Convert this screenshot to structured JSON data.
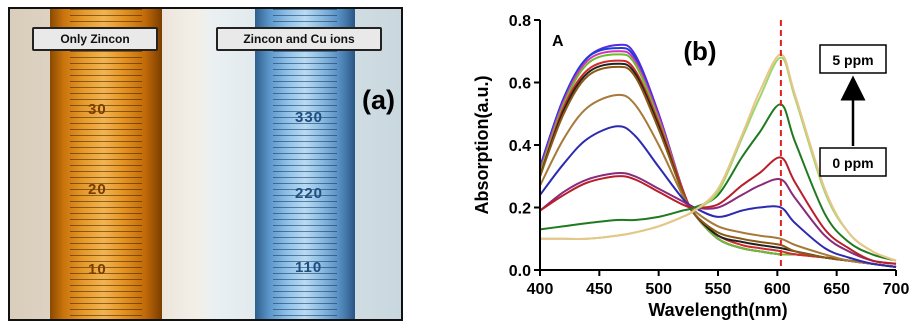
{
  "photo": {
    "left_label": "Only Zincon",
    "right_label": "Zincon and Cu ions",
    "panel_label": "(a)",
    "left_tube_marks": [
      "30",
      "20",
      "10"
    ],
    "right_tube_marks": [
      "330",
      "220",
      "110"
    ]
  },
  "chart_data": {
    "type": "line",
    "panel_label": "(b)",
    "inset_label": "A",
    "xlabel": "Wavelength(nm)",
    "ylabel": "Absorption(a.u.)",
    "xlim": [
      400,
      700
    ],
    "ylim": [
      0,
      0.8
    ],
    "xticks": [
      "400",
      "450",
      "500",
      "550",
      "600",
      "650",
      "700"
    ],
    "yticks": [
      "0.0",
      "0.2",
      "0.4",
      "0.6",
      "0.8"
    ],
    "grid": false,
    "reference_line": {
      "x": 603,
      "style": "dashed",
      "color": "#e02020"
    },
    "arrow_annotation": {
      "top_label": "5 ppm",
      "bottom_label": "0 ppm"
    },
    "x": [
      400,
      420,
      440,
      465,
      480,
      500,
      520,
      530,
      550,
      570,
      585,
      603,
      615,
      640,
      660,
      680,
      700
    ],
    "series": [
      {
        "color": "#5a2bd6",
        "values": [
          0.33,
          0.55,
          0.68,
          0.72,
          0.69,
          0.5,
          0.26,
          0.18,
          0.1,
          0.07,
          0.06,
          0.05,
          0.05,
          0.04,
          0.03,
          0.02,
          0.01
        ]
      },
      {
        "color": "#1a3fd8",
        "values": [
          0.33,
          0.55,
          0.68,
          0.71,
          0.68,
          0.49,
          0.26,
          0.18,
          0.1,
          0.07,
          0.06,
          0.05,
          0.05,
          0.04,
          0.03,
          0.02,
          0.01
        ]
      },
      {
        "color": "#d630c0",
        "values": [
          0.32,
          0.54,
          0.67,
          0.7,
          0.67,
          0.49,
          0.26,
          0.18,
          0.1,
          0.07,
          0.06,
          0.05,
          0.05,
          0.04,
          0.03,
          0.02,
          0.01
        ]
      },
      {
        "color": "#6bbf2a",
        "values": [
          0.31,
          0.53,
          0.66,
          0.69,
          0.66,
          0.48,
          0.26,
          0.18,
          0.1,
          0.07,
          0.06,
          0.05,
          0.05,
          0.04,
          0.03,
          0.02,
          0.01
        ]
      },
      {
        "color": "#d22b2b",
        "values": [
          0.3,
          0.52,
          0.64,
          0.67,
          0.64,
          0.47,
          0.26,
          0.18,
          0.11,
          0.08,
          0.07,
          0.06,
          0.05,
          0.04,
          0.03,
          0.02,
          0.01
        ]
      },
      {
        "color": "#222222",
        "values": [
          0.3,
          0.51,
          0.63,
          0.66,
          0.63,
          0.46,
          0.25,
          0.18,
          0.11,
          0.09,
          0.08,
          0.07,
          0.06,
          0.04,
          0.03,
          0.02,
          0.01
        ]
      },
      {
        "color": "#8a5a14",
        "values": [
          0.3,
          0.5,
          0.62,
          0.65,
          0.62,
          0.45,
          0.25,
          0.18,
          0.12,
          0.1,
          0.09,
          0.08,
          0.06,
          0.04,
          0.03,
          0.02,
          0.01
        ]
      },
      {
        "color": "#a77a3a",
        "values": [
          0.27,
          0.42,
          0.52,
          0.56,
          0.53,
          0.4,
          0.24,
          0.19,
          0.14,
          0.12,
          0.11,
          0.1,
          0.08,
          0.05,
          0.03,
          0.02,
          0.01
        ]
      },
      {
        "color": "#2b2ab0",
        "values": [
          0.24,
          0.34,
          0.42,
          0.46,
          0.43,
          0.33,
          0.23,
          0.2,
          0.17,
          0.19,
          0.2,
          0.2,
          0.15,
          0.07,
          0.04,
          0.02,
          0.01
        ]
      },
      {
        "color": "#8a2a7a",
        "values": [
          0.19,
          0.25,
          0.29,
          0.31,
          0.3,
          0.26,
          0.22,
          0.2,
          0.2,
          0.24,
          0.27,
          0.29,
          0.23,
          0.11,
          0.06,
          0.03,
          0.02
        ]
      },
      {
        "color": "#b81f2a",
        "values": [
          0.19,
          0.24,
          0.28,
          0.3,
          0.29,
          0.25,
          0.21,
          0.2,
          0.21,
          0.27,
          0.31,
          0.36,
          0.28,
          0.13,
          0.07,
          0.03,
          0.02
        ]
      },
      {
        "color": "#1f7a1f",
        "values": [
          0.13,
          0.14,
          0.15,
          0.16,
          0.16,
          0.17,
          0.19,
          0.2,
          0.24,
          0.36,
          0.44,
          0.53,
          0.41,
          0.18,
          0.09,
          0.05,
          0.03
        ]
      },
      {
        "color": "#9fd66a",
        "values": [
          0.1,
          0.1,
          0.1,
          0.11,
          0.12,
          0.14,
          0.17,
          0.19,
          0.25,
          0.42,
          0.55,
          0.68,
          0.55,
          0.25,
          0.12,
          0.06,
          0.03
        ]
      },
      {
        "color": "#e8c58a",
        "values": [
          0.1,
          0.1,
          0.1,
          0.11,
          0.12,
          0.14,
          0.17,
          0.19,
          0.26,
          0.43,
          0.57,
          0.69,
          0.56,
          0.26,
          0.12,
          0.06,
          0.03
        ]
      }
    ]
  }
}
